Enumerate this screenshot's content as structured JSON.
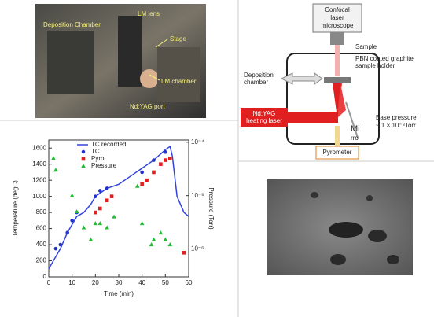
{
  "photo": {
    "labels": [
      "Deposition Chamber",
      "LM lens",
      "Stage",
      "LM chamber",
      "Nd:YAG port"
    ]
  },
  "diagram": {
    "microscope": [
      "Confocal",
      "laser",
      "microscope"
    ],
    "sample": "Sample",
    "holder": [
      "PBN coated graphite",
      "sample holder"
    ],
    "chamber": [
      "Deposition",
      "chamber"
    ],
    "laser": [
      "Nd:YAG",
      "heating laser"
    ],
    "pressure": [
      "Base pressure",
      "~ 1 × 10⁻⁸Torr"
    ],
    "mirror": [
      "Mi",
      "rro"
    ],
    "pyrometer": "Pyrometer"
  },
  "chart_data": {
    "type": "scatter",
    "y_label": "Temperature (degC)",
    "x_label": "Time (min)",
    "y2_label": "Pressure (Torr)",
    "xlim": [
      0,
      60
    ],
    "xticks": [
      0,
      10,
      20,
      30,
      40,
      50,
      60
    ],
    "ylim": [
      0,
      1700
    ],
    "yticks": [
      0,
      200,
      400,
      600,
      800,
      1000,
      1200,
      1400,
      1600
    ],
    "y2lim": [
      3e-07,
      0.00011
    ],
    "y2scale": "log",
    "y2ticks": [
      {
        "value": 1e-06,
        "label": "10⁻⁶"
      },
      {
        "value": 1e-05,
        "label": "10⁻⁵"
      },
      {
        "value": 0.0001,
        "label": "10⁻⁴"
      }
    ],
    "legend": "upper left",
    "series": [
      {
        "name": "TC recorded",
        "color": "#3344dd",
        "marker": "line",
        "x": [
          0,
          2,
          5,
          8,
          10,
          12,
          15,
          18,
          20,
          25,
          30,
          35,
          40,
          45,
          50,
          52,
          53,
          55,
          58,
          60
        ],
        "values": [
          100,
          200,
          350,
          550,
          650,
          750,
          800,
          900,
          1000,
          1100,
          1150,
          1250,
          1350,
          1450,
          1580,
          1620,
          1500,
          1000,
          800,
          750
        ]
      },
      {
        "name": "TC",
        "color": "#2233cc",
        "marker": "circle",
        "x": [
          3,
          5,
          8,
          10,
          12,
          20,
          22,
          25,
          40,
          45,
          50
        ],
        "values": [
          350,
          400,
          550,
          700,
          800,
          1000,
          1070,
          1100,
          1300,
          1450,
          1550
        ]
      },
      {
        "name": "Pyro",
        "color": "#e02020",
        "marker": "square",
        "x": [
          20,
          22,
          25,
          27,
          40,
          42,
          45,
          48,
          50,
          52,
          58
        ],
        "values": [
          800,
          850,
          950,
          1000,
          1150,
          1200,
          1300,
          1400,
          1450,
          1470,
          300
        ]
      },
      {
        "name": "Pressure",
        "color": "#22bb33",
        "marker": "triangle",
        "axis": "y2",
        "x": [
          2,
          3,
          10,
          12,
          15,
          18,
          20,
          22,
          25,
          28,
          38,
          40,
          44,
          45,
          48,
          50,
          52
        ],
        "values": [
          5e-05,
          3e-05,
          1e-05,
          5e-06,
          2.5e-06,
          1.5e-06,
          3e-06,
          3e-06,
          2.5e-06,
          4e-06,
          1.5e-05,
          3e-06,
          1.2e-06,
          1.5e-06,
          2e-06,
          1.5e-06,
          1.2e-06
        ]
      }
    ]
  }
}
